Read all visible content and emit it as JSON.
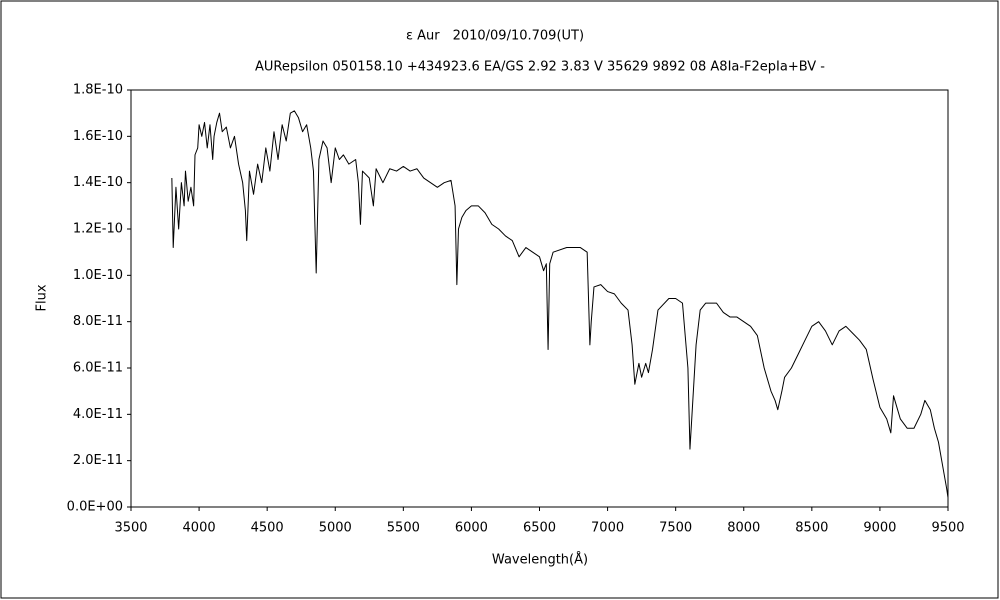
{
  "chart_data": {
    "type": "line",
    "title": "ε Aur　2010/09/10.709(UT)",
    "subtitle": "AURepsilon 050158.10 +434923.6 EA/GS 2.92 3.83 V 35629 9892 08 A8Ia-F2epIa+BV -",
    "x_label": "Wavelength(Å)",
    "y_label": "Flux",
    "xlim": [
      3500,
      9500
    ],
    "xticks": [
      3500,
      4000,
      4500,
      5000,
      5500,
      6000,
      6500,
      7000,
      7500,
      8000,
      8500,
      9000,
      9500
    ],
    "ylim": [
      0,
      1.8e-10
    ],
    "yticks": [
      {
        "value": 0,
        "label": "0.0E+00"
      },
      {
        "value": 2e-11,
        "label": "2.0E-11"
      },
      {
        "value": 4e-11,
        "label": "4.0E-11"
      },
      {
        "value": 6e-11,
        "label": "6.0E-11"
      },
      {
        "value": 8e-11,
        "label": "8.0E-11"
      },
      {
        "value": 1e-10,
        "label": "1.0E-10"
      },
      {
        "value": 1.2e-10,
        "label": "1.2E-10"
      },
      {
        "value": 1.4e-10,
        "label": "1.4E-10"
      },
      {
        "value": 1.6e-10,
        "label": "1.6E-10"
      },
      {
        "value": 1.8e-10,
        "label": "1.8E-10"
      }
    ],
    "grid": false,
    "color": "#000000",
    "x": [
      3800,
      3810,
      3830,
      3850,
      3870,
      3890,
      3900,
      3920,
      3940,
      3960,
      3970,
      3990,
      4000,
      4020,
      4040,
      4060,
      4080,
      4100,
      4110,
      4130,
      4150,
      4170,
      4200,
      4230,
      4260,
      4290,
      4320,
      4340,
      4350,
      4370,
      4400,
      4430,
      4460,
      4490,
      4520,
      4550,
      4580,
      4610,
      4640,
      4670,
      4700,
      4730,
      4760,
      4790,
      4820,
      4840,
      4860,
      4880,
      4910,
      4940,
      4970,
      5000,
      5030,
      5060,
      5100,
      5150,
      5170,
      5185,
      5200,
      5250,
      5280,
      5300,
      5350,
      5400,
      5450,
      5500,
      5550,
      5600,
      5650,
      5700,
      5750,
      5800,
      5850,
      5880,
      5893,
      5905,
      5930,
      5960,
      6000,
      6050,
      6100,
      6150,
      6200,
      6250,
      6300,
      6350,
      6400,
      6450,
      6500,
      6530,
      6550,
      6563,
      6575,
      6600,
      6700,
      6800,
      6850,
      6870,
      6880,
      6900,
      6950,
      7000,
      7050,
      7100,
      7150,
      7180,
      7200,
      7230,
      7250,
      7280,
      7300,
      7330,
      7370,
      7450,
      7500,
      7550,
      7590,
      7605,
      7620,
      7650,
      7680,
      7720,
      7800,
      7850,
      7900,
      7950,
      8000,
      8050,
      8100,
      8150,
      8200,
      8230,
      8250,
      8280,
      8300,
      8350,
      8400,
      8450,
      8500,
      8550,
      8600,
      8650,
      8700,
      8750,
      8800,
      8850,
      8900,
      8950,
      9000,
      9050,
      9080,
      9100,
      9150,
      9200,
      9250,
      9300,
      9330,
      9370,
      9400,
      9430,
      9460,
      9490,
      9500
    ],
    "values": [
      1.42e-10,
      1.12e-10,
      1.38e-10,
      1.2e-10,
      1.4e-10,
      1.3e-10,
      1.45e-10,
      1.32e-10,
      1.38e-10,
      1.3e-10,
      1.52e-10,
      1.55e-10,
      1.65e-10,
      1.6e-10,
      1.66e-10,
      1.55e-10,
      1.65e-10,
      1.5e-10,
      1.6e-10,
      1.66e-10,
      1.7e-10,
      1.62e-10,
      1.64e-10,
      1.55e-10,
      1.6e-10,
      1.48e-10,
      1.4e-10,
      1.28e-10,
      1.15e-10,
      1.45e-10,
      1.35e-10,
      1.48e-10,
      1.4e-10,
      1.55e-10,
      1.45e-10,
      1.62e-10,
      1.5e-10,
      1.65e-10,
      1.58e-10,
      1.7e-10,
      1.71e-10,
      1.68e-10,
      1.62e-10,
      1.65e-10,
      1.55e-10,
      1.45e-10,
      1.01e-10,
      1.5e-10,
      1.58e-10,
      1.55e-10,
      1.4e-10,
      1.55e-10,
      1.5e-10,
      1.52e-10,
      1.48e-10,
      1.5e-10,
      1.4e-10,
      1.22e-10,
      1.45e-10,
      1.42e-10,
      1.3e-10,
      1.46e-10,
      1.4e-10,
      1.46e-10,
      1.45e-10,
      1.47e-10,
      1.45e-10,
      1.46e-10,
      1.42e-10,
      1.4e-10,
      1.38e-10,
      1.4e-10,
      1.41e-10,
      1.3e-10,
      9.6e-11,
      1.2e-10,
      1.25e-10,
      1.28e-10,
      1.3e-10,
      1.3e-10,
      1.27e-10,
      1.22e-10,
      1.2e-10,
      1.17e-10,
      1.15e-10,
      1.08e-10,
      1.12e-10,
      1.1e-10,
      1.08e-10,
      1.02e-10,
      1.05e-10,
      6.8e-11,
      1.05e-10,
      1.1e-10,
      1.12e-10,
      1.12e-10,
      1.1e-10,
      7e-11,
      8e-11,
      9.5e-11,
      9.6e-11,
      9.3e-11,
      9.2e-11,
      8.8e-11,
      8.5e-11,
      7e-11,
      5.3e-11,
      6.2e-11,
      5.6e-11,
      6.2e-11,
      5.8e-11,
      6.8e-11,
      8.5e-11,
      9e-11,
      9e-11,
      8.8e-11,
      6e-11,
      2.5e-11,
      4e-11,
      7e-11,
      8.5e-11,
      8.8e-11,
      8.8e-11,
      8.4e-11,
      8.2e-11,
      8.2e-11,
      8e-11,
      7.8e-11,
      7.4e-11,
      6e-11,
      5e-11,
      4.6e-11,
      4.2e-11,
      5e-11,
      5.6e-11,
      6e-11,
      6.6e-11,
      7.2e-11,
      7.8e-11,
      8e-11,
      7.6e-11,
      7e-11,
      7.6e-11,
      7.8e-11,
      7.5e-11,
      7.2e-11,
      6.8e-11,
      5.5e-11,
      4.3e-11,
      3.8e-11,
      3.2e-11,
      4.8e-11,
      3.8e-11,
      3.4e-11,
      3.4e-11,
      4e-11,
      4.6e-11,
      4.2e-11,
      3.4e-11,
      2.8e-11,
      1.8e-11,
      8e-12,
      4e-12
    ]
  }
}
